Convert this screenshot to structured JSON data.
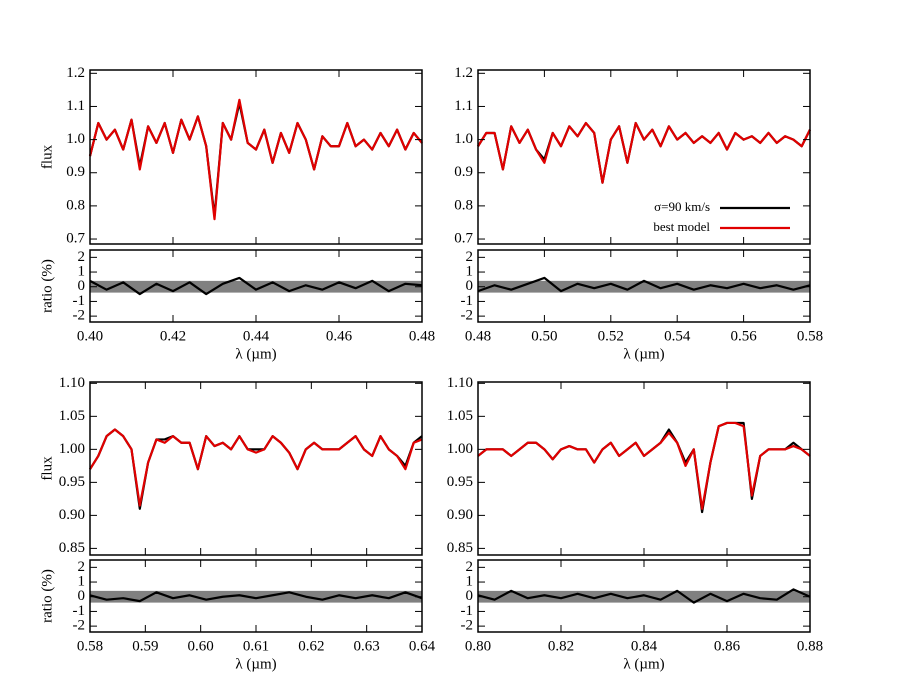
{
  "chart_data": [
    {
      "type": "line",
      "ylabel": "flux",
      "xlim": [
        0.4,
        0.48
      ],
      "ylim": [
        0.685,
        1.21
      ],
      "yticks": [
        {
          "value": 0.7,
          "label": "0.7"
        },
        {
          "value": 0.8,
          "label": "0.8"
        },
        {
          "value": 0.9,
          "label": "0.9"
        },
        {
          "value": 1.0,
          "label": "1.0"
        },
        {
          "value": 1.1,
          "label": "1.1"
        },
        {
          "value": 1.2,
          "label": "1.2"
        }
      ],
      "x": [
        0.4,
        0.402,
        0.404,
        0.406,
        0.408,
        0.41,
        0.412,
        0.414,
        0.416,
        0.418,
        0.42,
        0.422,
        0.424,
        0.426,
        0.428,
        0.43,
        0.432,
        0.434,
        0.436,
        0.438,
        0.44,
        0.442,
        0.444,
        0.446,
        0.448,
        0.45,
        0.452,
        0.454,
        0.456,
        0.458,
        0.46,
        0.462,
        0.464,
        0.466,
        0.468,
        0.47,
        0.472,
        0.474,
        0.476,
        0.478,
        0.48
      ],
      "series": [
        {
          "color": "#000000",
          "values": [
            0.95,
            1.05,
            1.0,
            1.03,
            0.97,
            1.06,
            0.92,
            1.04,
            0.99,
            1.05,
            0.96,
            1.06,
            1.0,
            1.07,
            0.98,
            0.77,
            1.05,
            1.0,
            1.11,
            0.99,
            0.97,
            1.03,
            0.93,
            1.02,
            0.96,
            1.05,
            1.0,
            0.91,
            1.01,
            0.98,
            0.98,
            1.05,
            0.98,
            1.0,
            0.97,
            1.02,
            0.98,
            1.03,
            0.97,
            1.02,
            0.99
          ]
        },
        {
          "color": "#e00000",
          "values": [
            0.95,
            1.05,
            1.0,
            1.03,
            0.97,
            1.06,
            0.91,
            1.04,
            0.99,
            1.05,
            0.96,
            1.06,
            1.0,
            1.07,
            0.98,
            0.76,
            1.05,
            1.0,
            1.12,
            0.99,
            0.97,
            1.03,
            0.93,
            1.02,
            0.96,
            1.05,
            1.0,
            0.91,
            1.01,
            0.98,
            0.98,
            1.05,
            0.98,
            1.0,
            0.97,
            1.02,
            0.98,
            1.03,
            0.97,
            1.02,
            0.99
          ]
        }
      ]
    },
    {
      "type": "line",
      "ylabel": "ratio (%)",
      "xlabel": "λ (µm)",
      "xlim": [
        0.4,
        0.48
      ],
      "ylim": [
        -2.4,
        2.5
      ],
      "yticks": [
        -2,
        -1,
        0,
        1,
        2
      ],
      "xticks": [
        {
          "value": 0.4,
          "label": "0.40"
        },
        {
          "value": 0.42,
          "label": "0.42"
        },
        {
          "value": 0.44,
          "label": "0.44"
        },
        {
          "value": 0.46,
          "label": "0.46"
        },
        {
          "value": 0.48,
          "label": "0.48"
        }
      ],
      "shade": {
        "min": -0.4,
        "max": 0.4,
        "color": "#808080"
      },
      "x": [
        0.4,
        0.404,
        0.408,
        0.412,
        0.416,
        0.42,
        0.424,
        0.428,
        0.432,
        0.436,
        0.44,
        0.444,
        0.448,
        0.452,
        0.456,
        0.46,
        0.464,
        0.468,
        0.472,
        0.476,
        0.48
      ],
      "series": [
        {
          "color": "#000000",
          "values": [
            0.4,
            -0.2,
            0.3,
            -0.5,
            0.2,
            -0.3,
            0.3,
            -0.5,
            0.2,
            0.6,
            -0.2,
            0.3,
            -0.3,
            0.1,
            -0.2,
            0.3,
            -0.1,
            0.4,
            -0.3,
            0.2,
            0.1
          ]
        }
      ]
    },
    {
      "type": "line",
      "xlim": [
        0.48,
        0.58
      ],
      "ylim": [
        0.685,
        1.21
      ],
      "yticks": [
        {
          "value": 0.7,
          "label": "0.7"
        },
        {
          "value": 0.8,
          "label": "0.8"
        },
        {
          "value": 0.9,
          "label": "0.9"
        },
        {
          "value": 1.0,
          "label": "1.0"
        },
        {
          "value": 1.1,
          "label": "1.1"
        },
        {
          "value": 1.2,
          "label": "1.2"
        }
      ],
      "legend": "lower right",
      "x": [
        0.48,
        0.4825,
        0.485,
        0.4875,
        0.49,
        0.4925,
        0.495,
        0.4975,
        0.5,
        0.5025,
        0.505,
        0.5075,
        0.51,
        0.5125,
        0.515,
        0.5175,
        0.52,
        0.5225,
        0.525,
        0.5275,
        0.53,
        0.5325,
        0.535,
        0.5375,
        0.54,
        0.5425,
        0.545,
        0.5475,
        0.55,
        0.5525,
        0.555,
        0.5575,
        0.56,
        0.5625,
        0.565,
        0.5675,
        0.57,
        0.5725,
        0.575,
        0.5775,
        0.58
      ],
      "series": [
        {
          "name": "σ=90 km/s",
          "color": "#000000",
          "values": [
            0.98,
            1.02,
            1.02,
            0.91,
            1.04,
            0.99,
            1.03,
            0.97,
            0.94,
            1.02,
            0.98,
            1.04,
            1.01,
            1.05,
            1.02,
            0.87,
            1.0,
            1.04,
            0.93,
            1.05,
            1.0,
            1.03,
            0.98,
            1.04,
            1.0,
            1.02,
            0.99,
            1.01,
            0.99,
            1.02,
            0.97,
            1.02,
            1.0,
            1.01,
            0.99,
            1.02,
            0.99,
            1.01,
            1.0,
            0.98,
            1.03
          ]
        },
        {
          "name": "best model",
          "color": "#e00000",
          "values": [
            0.98,
            1.02,
            1.02,
            0.91,
            1.04,
            0.99,
            1.03,
            0.97,
            0.93,
            1.02,
            0.98,
            1.04,
            1.01,
            1.05,
            1.02,
            0.87,
            1.0,
            1.04,
            0.93,
            1.05,
            1.0,
            1.03,
            0.98,
            1.04,
            1.0,
            1.02,
            0.99,
            1.01,
            0.99,
            1.02,
            0.97,
            1.02,
            1.0,
            1.01,
            0.99,
            1.02,
            0.99,
            1.01,
            1.0,
            0.98,
            1.03
          ]
        }
      ]
    },
    {
      "type": "line",
      "xlabel": "λ (µm)",
      "xlim": [
        0.48,
        0.58
      ],
      "ylim": [
        -2.4,
        2.5
      ],
      "yticks": [
        -2,
        -1,
        0,
        1,
        2
      ],
      "xticks": [
        {
          "value": 0.48,
          "label": "0.48"
        },
        {
          "value": 0.5,
          "label": "0.50"
        },
        {
          "value": 0.52,
          "label": "0.52"
        },
        {
          "value": 0.54,
          "label": "0.54"
        },
        {
          "value": 0.56,
          "label": "0.56"
        },
        {
          "value": 0.58,
          "label": "0.58"
        }
      ],
      "shade": {
        "min": -0.4,
        "max": 0.4,
        "color": "#808080"
      },
      "x": [
        0.48,
        0.485,
        0.49,
        0.495,
        0.5,
        0.505,
        0.51,
        0.515,
        0.52,
        0.525,
        0.53,
        0.535,
        0.54,
        0.545,
        0.55,
        0.555,
        0.56,
        0.565,
        0.57,
        0.575,
        0.58
      ],
      "series": [
        {
          "color": "#000000",
          "values": [
            -0.3,
            0.1,
            -0.2,
            0.2,
            0.6,
            -0.3,
            0.2,
            -0.1,
            0.2,
            -0.2,
            0.4,
            -0.1,
            0.2,
            -0.2,
            0.1,
            -0.1,
            0.2,
            -0.1,
            0.1,
            -0.2,
            0.1
          ]
        }
      ]
    },
    {
      "type": "line",
      "ylabel": "flux",
      "xlim": [
        0.58,
        0.64
      ],
      "ylim": [
        0.84,
        1.102
      ],
      "yticks": [
        {
          "value": 0.85,
          "label": "0.85"
        },
        {
          "value": 0.9,
          "label": "0.90"
        },
        {
          "value": 0.95,
          "label": "0.95"
        },
        {
          "value": 1.0,
          "label": "1.00"
        },
        {
          "value": 1.05,
          "label": "1.05"
        },
        {
          "value": 1.1,
          "label": "1.10"
        }
      ],
      "x": [
        0.58,
        0.5815,
        0.583,
        0.5845,
        0.586,
        0.5875,
        0.589,
        0.5905,
        0.592,
        0.5935,
        0.595,
        0.5965,
        0.598,
        0.5995,
        0.601,
        0.6025,
        0.604,
        0.6055,
        0.607,
        0.6085,
        0.61,
        0.6115,
        0.613,
        0.6145,
        0.616,
        0.6175,
        0.619,
        0.6205,
        0.622,
        0.6235,
        0.625,
        0.6265,
        0.628,
        0.6295,
        0.631,
        0.6325,
        0.634,
        0.6355,
        0.637,
        0.6385,
        0.64
      ],
      "series": [
        {
          "color": "#000000",
          "values": [
            0.97,
            0.99,
            1.02,
            1.03,
            1.02,
            1.0,
            0.91,
            0.98,
            1.015,
            1.015,
            1.02,
            1.01,
            1.01,
            0.97,
            1.02,
            1.005,
            1.01,
            1.0,
            1.02,
            1.0,
            1.0,
            1.0,
            1.02,
            1.01,
            0.995,
            0.97,
            1.0,
            1.01,
            1.0,
            1.0,
            1.0,
            1.01,
            1.02,
            1.0,
            0.99,
            1.02,
            1.0,
            0.99,
            0.975,
            1.01,
            1.02
          ]
        },
        {
          "color": "#e00000",
          "values": [
            0.97,
            0.99,
            1.02,
            1.03,
            1.02,
            1.0,
            0.915,
            0.98,
            1.015,
            1.01,
            1.02,
            1.01,
            1.01,
            0.97,
            1.02,
            1.005,
            1.01,
            1.0,
            1.02,
            1.0,
            0.995,
            1.0,
            1.02,
            1.01,
            0.995,
            0.97,
            1.0,
            1.01,
            1.0,
            1.0,
            1.0,
            1.01,
            1.02,
            1.0,
            0.99,
            1.02,
            1.0,
            0.99,
            0.97,
            1.01,
            1.015
          ]
        }
      ]
    },
    {
      "type": "line",
      "ylabel": "ratio (%)",
      "xlabel": "λ (µm)",
      "xlim": [
        0.58,
        0.64
      ],
      "ylim": [
        -2.4,
        2.5
      ],
      "yticks": [
        -2,
        -1,
        0,
        1,
        2
      ],
      "xticks": [
        {
          "value": 0.58,
          "label": "0.58"
        },
        {
          "value": 0.59,
          "label": "0.59"
        },
        {
          "value": 0.6,
          "label": "0.60"
        },
        {
          "value": 0.61,
          "label": "0.61"
        },
        {
          "value": 0.62,
          "label": "0.62"
        },
        {
          "value": 0.63,
          "label": "0.63"
        },
        {
          "value": 0.64,
          "label": "0.64"
        }
      ],
      "shade": {
        "min": -0.4,
        "max": 0.4,
        "color": "#808080"
      },
      "x": [
        0.58,
        0.583,
        0.586,
        0.589,
        0.592,
        0.595,
        0.598,
        0.601,
        0.604,
        0.607,
        0.61,
        0.613,
        0.616,
        0.619,
        0.622,
        0.625,
        0.628,
        0.631,
        0.634,
        0.637,
        0.64
      ],
      "series": [
        {
          "color": "#000000",
          "values": [
            0.1,
            -0.2,
            -0.1,
            -0.3,
            0.3,
            -0.1,
            0.1,
            -0.2,
            0.0,
            0.1,
            -0.1,
            0.1,
            0.3,
            0.0,
            -0.2,
            0.1,
            -0.1,
            0.1,
            -0.1,
            0.3,
            -0.1
          ]
        }
      ]
    },
    {
      "type": "line",
      "xlim": [
        0.8,
        0.88
      ],
      "ylim": [
        0.84,
        1.102
      ],
      "yticks": [
        {
          "value": 0.85,
          "label": "0.85"
        },
        {
          "value": 0.9,
          "label": "0.90"
        },
        {
          "value": 0.95,
          "label": "0.95"
        },
        {
          "value": 1.0,
          "label": "1.00"
        },
        {
          "value": 1.05,
          "label": "1.05"
        },
        {
          "value": 1.1,
          "label": "1.10"
        }
      ],
      "x": [
        0.8,
        0.802,
        0.804,
        0.806,
        0.808,
        0.81,
        0.812,
        0.814,
        0.816,
        0.818,
        0.82,
        0.822,
        0.824,
        0.826,
        0.828,
        0.83,
        0.832,
        0.834,
        0.836,
        0.838,
        0.84,
        0.842,
        0.844,
        0.846,
        0.848,
        0.85,
        0.852,
        0.854,
        0.856,
        0.858,
        0.86,
        0.862,
        0.864,
        0.866,
        0.868,
        0.87,
        0.872,
        0.874,
        0.876,
        0.878,
        0.88
      ],
      "series": [
        {
          "color": "#000000",
          "values": [
            0.99,
            1.0,
            1.0,
            1.0,
            0.99,
            1.0,
            1.01,
            1.01,
            1.0,
            0.985,
            1.0,
            1.005,
            1.0,
            1.0,
            0.98,
            1.0,
            1.01,
            0.99,
            1.0,
            1.01,
            0.99,
            1.0,
            1.01,
            1.03,
            1.01,
            0.98,
            1.0,
            0.905,
            0.98,
            1.035,
            1.04,
            1.04,
            1.04,
            0.925,
            0.99,
            1.0,
            1.0,
            1.0,
            1.01,
            1.0,
            0.99
          ]
        },
        {
          "color": "#e00000",
          "values": [
            0.99,
            1.0,
            1.0,
            1.0,
            0.99,
            1.0,
            1.01,
            1.01,
            1.0,
            0.985,
            1.0,
            1.005,
            1.0,
            1.0,
            0.98,
            1.0,
            1.01,
            0.99,
            1.0,
            1.01,
            0.99,
            1.0,
            1.01,
            1.025,
            1.01,
            0.975,
            1.0,
            0.91,
            0.98,
            1.035,
            1.04,
            1.04,
            1.035,
            0.93,
            0.99,
            1.0,
            1.0,
            1.0,
            1.005,
            1.0,
            0.99
          ]
        }
      ]
    },
    {
      "type": "line",
      "xlabel": "λ (µm)",
      "xlim": [
        0.8,
        0.88
      ],
      "ylim": [
        -2.4,
        2.5
      ],
      "yticks": [
        -2,
        -1,
        0,
        1,
        2
      ],
      "xticks": [
        {
          "value": 0.8,
          "label": "0.80"
        },
        {
          "value": 0.82,
          "label": "0.82"
        },
        {
          "value": 0.84,
          "label": "0.84"
        },
        {
          "value": 0.86,
          "label": "0.86"
        },
        {
          "value": 0.88,
          "label": "0.88"
        }
      ],
      "shade": {
        "min": -0.4,
        "max": 0.4,
        "color": "#808080"
      },
      "x": [
        0.8,
        0.804,
        0.808,
        0.812,
        0.816,
        0.82,
        0.824,
        0.828,
        0.832,
        0.836,
        0.84,
        0.844,
        0.848,
        0.852,
        0.856,
        0.86,
        0.864,
        0.868,
        0.872,
        0.876,
        0.88
      ],
      "series": [
        {
          "color": "#000000",
          "values": [
            0.1,
            -0.2,
            0.4,
            -0.1,
            0.1,
            -0.1,
            0.2,
            -0.1,
            0.2,
            -0.1,
            0.1,
            -0.2,
            0.4,
            -0.4,
            0.2,
            -0.3,
            0.2,
            -0.1,
            -0.2,
            0.5,
            0.0
          ]
        }
      ]
    }
  ]
}
